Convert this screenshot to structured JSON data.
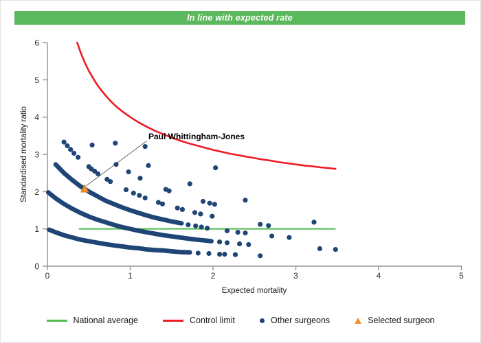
{
  "header": {
    "status_text": "In line with expected rate",
    "status_color": "#5cb85c"
  },
  "legend": {
    "national_average_label": "National average",
    "control_limit_label": "Control limit",
    "other_surgeons_label": "Other surgeons",
    "selected_surgeon_label": "Selected surgeon"
  },
  "colors": {
    "navy_point": "#1f4577",
    "control_red": "#ec1c24",
    "average_green": "#4fba4f",
    "selected_orange": "#f0912d",
    "selected_orange_border": "#d97b20",
    "axis_gray": "#999999",
    "connector_gray": "#444444"
  },
  "chart_data": {
    "type": "scatter",
    "xlabel": "Expected mortality",
    "ylabel": "Standardised mortality ratio",
    "xlim": [
      0,
      5
    ],
    "ylim": [
      0,
      6
    ],
    "xticks": [
      0,
      1,
      2,
      3,
      4,
      5
    ],
    "yticks": [
      0,
      1,
      2,
      3,
      4,
      5,
      6
    ],
    "grid": false,
    "legend_position": "bottom",
    "national_average": {
      "value": 1.0,
      "x_start": 0.38,
      "x_end": 3.48
    },
    "control_limit": [
      [
        0.36,
        6.0
      ],
      [
        0.4,
        5.74
      ],
      [
        0.45,
        5.47
      ],
      [
        0.5,
        5.24
      ],
      [
        0.55,
        5.05
      ],
      [
        0.6,
        4.87
      ],
      [
        0.65,
        4.72
      ],
      [
        0.7,
        4.59
      ],
      [
        0.75,
        4.46
      ],
      [
        0.8,
        4.35
      ],
      [
        0.85,
        4.25
      ],
      [
        0.9,
        4.16
      ],
      [
        0.95,
        4.08
      ],
      [
        1.0,
        4.0
      ],
      [
        1.1,
        3.86
      ],
      [
        1.2,
        3.74
      ],
      [
        1.3,
        3.63
      ],
      [
        1.4,
        3.54
      ],
      [
        1.5,
        3.45
      ],
      [
        1.6,
        3.37
      ],
      [
        1.7,
        3.3
      ],
      [
        1.8,
        3.24
      ],
      [
        1.9,
        3.18
      ],
      [
        2.0,
        3.12
      ],
      [
        2.1,
        3.07
      ],
      [
        2.2,
        3.02
      ],
      [
        2.3,
        2.98
      ],
      [
        2.4,
        2.94
      ],
      [
        2.5,
        2.9
      ],
      [
        2.6,
        2.86
      ],
      [
        2.7,
        2.83
      ],
      [
        2.8,
        2.79
      ],
      [
        2.9,
        2.76
      ],
      [
        3.0,
        2.73
      ],
      [
        3.1,
        2.7
      ],
      [
        3.2,
        2.68
      ],
      [
        3.3,
        2.65
      ],
      [
        3.4,
        2.63
      ],
      [
        3.48,
        2.61
      ]
    ],
    "surgeon_bands": [
      {
        "name": "band-1-death",
        "points": [
          [
            0.02,
            0.98
          ],
          [
            0.1,
            0.91
          ],
          [
            0.2,
            0.83
          ],
          [
            0.3,
            0.77
          ],
          [
            0.4,
            0.71
          ],
          [
            0.5,
            0.67
          ],
          [
            0.6,
            0.63
          ],
          [
            0.7,
            0.59
          ],
          [
            0.8,
            0.56
          ],
          [
            0.9,
            0.53
          ],
          [
            1.0,
            0.5
          ],
          [
            1.1,
            0.48
          ],
          [
            1.2,
            0.45
          ],
          [
            1.3,
            0.43
          ],
          [
            1.4,
            0.42
          ],
          [
            1.5,
            0.4
          ],
          [
            1.6,
            0.38
          ],
          [
            1.72,
            0.37
          ]
        ]
      },
      {
        "name": "band-2-deaths",
        "points": [
          [
            0.01,
            1.98
          ],
          [
            0.1,
            1.82
          ],
          [
            0.2,
            1.67
          ],
          [
            0.3,
            1.54
          ],
          [
            0.4,
            1.43
          ],
          [
            0.5,
            1.33
          ],
          [
            0.6,
            1.25
          ],
          [
            0.7,
            1.18
          ],
          [
            0.8,
            1.11
          ],
          [
            0.9,
            1.05
          ],
          [
            1.0,
            1.0
          ],
          [
            1.1,
            0.95
          ],
          [
            1.2,
            0.91
          ],
          [
            1.3,
            0.87
          ],
          [
            1.4,
            0.83
          ],
          [
            1.5,
            0.8
          ],
          [
            1.6,
            0.77
          ],
          [
            1.7,
            0.74
          ],
          [
            1.8,
            0.71
          ],
          [
            1.9,
            0.69
          ],
          [
            1.98,
            0.67
          ]
        ]
      },
      {
        "name": "band-3-deaths",
        "points": [
          [
            0.1,
            2.73
          ],
          [
            0.2,
            2.5
          ],
          [
            0.3,
            2.31
          ],
          [
            0.4,
            2.14
          ],
          [
            0.5,
            2.0
          ],
          [
            0.6,
            1.88
          ],
          [
            0.7,
            1.76
          ],
          [
            0.8,
            1.67
          ],
          [
            0.9,
            1.58
          ],
          [
            1.0,
            1.5
          ],
          [
            1.1,
            1.43
          ],
          [
            1.2,
            1.36
          ],
          [
            1.3,
            1.3
          ],
          [
            1.4,
            1.25
          ],
          [
            1.5,
            1.2
          ],
          [
            1.62,
            1.15
          ]
        ]
      }
    ],
    "other_surgeons": [
      [
        1.82,
        0.35
      ],
      [
        1.95,
        0.34
      ],
      [
        2.08,
        0.32
      ],
      [
        2.14,
        0.32
      ],
      [
        2.27,
        0.31
      ],
      [
        2.57,
        0.28
      ],
      [
        2.08,
        0.65
      ],
      [
        2.17,
        0.63
      ],
      [
        2.32,
        0.6
      ],
      [
        2.43,
        0.58
      ],
      [
        3.29,
        0.47
      ],
      [
        3.48,
        0.45
      ],
      [
        1.7,
        1.11
      ],
      [
        1.79,
        1.08
      ],
      [
        1.86,
        1.05
      ],
      [
        1.93,
        1.02
      ],
      [
        2.17,
        0.95
      ],
      [
        2.3,
        0.91
      ],
      [
        2.39,
        0.89
      ],
      [
        2.71,
        0.81
      ],
      [
        2.92,
        0.77
      ],
      [
        0.2,
        3.33
      ],
      [
        0.24,
        3.23
      ],
      [
        0.28,
        3.13
      ],
      [
        0.32,
        3.03
      ],
      [
        0.37,
        2.92
      ],
      [
        0.5,
        2.67
      ],
      [
        0.53,
        2.61
      ],
      [
        0.57,
        2.55
      ],
      [
        0.61,
        2.48
      ],
      [
        0.72,
        2.33
      ],
      [
        0.76,
        2.27
      ],
      [
        0.95,
        2.05
      ],
      [
        1.04,
        1.96
      ],
      [
        1.11,
        1.9
      ],
      [
        1.18,
        1.83
      ],
      [
        1.34,
        1.71
      ],
      [
        1.39,
        1.67
      ],
      [
        1.57,
        1.56
      ],
      [
        1.63,
        1.52
      ],
      [
        1.78,
        1.44
      ],
      [
        1.85,
        1.4
      ],
      [
        1.99,
        1.34
      ],
      [
        2.57,
        1.12
      ],
      [
        2.67,
        1.09
      ],
      [
        0.54,
        3.25
      ],
      [
        0.83,
        2.73
      ],
      [
        0.98,
        2.53
      ],
      [
        1.12,
        2.36
      ],
      [
        1.43,
        2.06
      ],
      [
        1.47,
        2.02
      ],
      [
        1.88,
        1.74
      ],
      [
        1.96,
        1.69
      ],
      [
        2.02,
        1.66
      ],
      [
        3.22,
        1.18
      ],
      [
        0.82,
        3.3
      ],
      [
        1.22,
        2.7
      ],
      [
        1.72,
        2.21
      ],
      [
        2.39,
        1.77
      ],
      [
        1.18,
        3.21
      ],
      [
        2.03,
        2.64
      ]
    ],
    "selected_surgeon": {
      "label": "Paul Whittingham-Jones",
      "x": 0.45,
      "y": 2.07,
      "label_x": 1.22,
      "label_y": 3.48,
      "connector": [
        [
          1.2,
          3.36
        ],
        [
          0.47,
          2.16
        ]
      ]
    }
  }
}
